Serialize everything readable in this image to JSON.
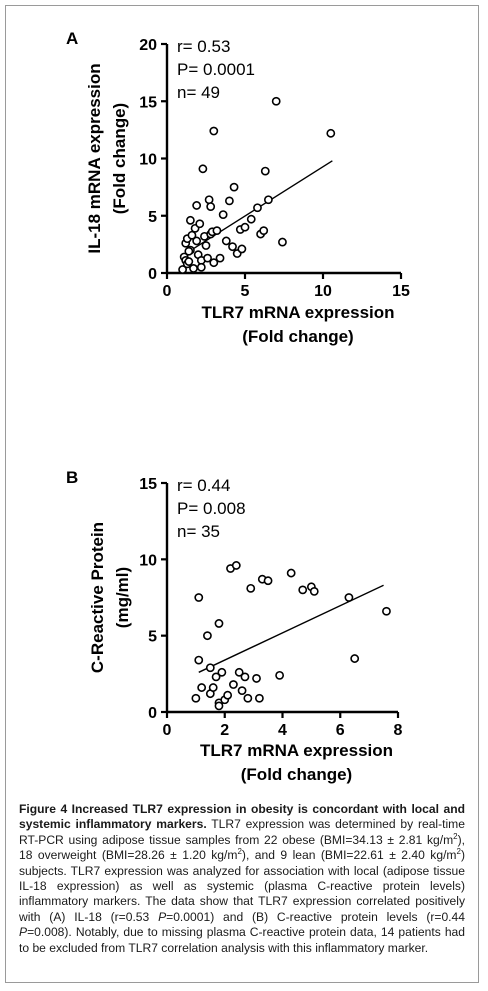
{
  "chart_data": [
    {
      "type": "scatter",
      "panel": "A",
      "xlabel": [
        "TLR7 mRNA expression",
        "(Fold change)"
      ],
      "ylabel": [
        "IL-18 mRNA expression",
        "(Fold change)"
      ],
      "xlim": [
        0,
        15
      ],
      "ylim": [
        0,
        20
      ],
      "xticks": [
        "0",
        "5",
        "10",
        "15"
      ],
      "yticks": [
        "0",
        "5",
        "10",
        "15",
        "20"
      ],
      "stats": [
        "r= 0.53",
        "P= 0.0001",
        "n= 49"
      ],
      "regression": {
        "x1": 1.2,
        "y1": 1.7,
        "x2": 10.6,
        "y2": 9.8
      },
      "points": [
        [
          1.0,
          0.3
        ],
        [
          1.1,
          1.4
        ],
        [
          1.2,
          1.1
        ],
        [
          1.3,
          0.8
        ],
        [
          1.4,
          1.0
        ],
        [
          1.2,
          2.6
        ],
        [
          1.3,
          3.0
        ],
        [
          1.5,
          4.6
        ],
        [
          1.5,
          2.0
        ],
        [
          1.7,
          0.4
        ],
        [
          1.8,
          3.9
        ],
        [
          1.9,
          5.9
        ],
        [
          1.9,
          2.8
        ],
        [
          2.0,
          1.6
        ],
        [
          2.1,
          4.3
        ],
        [
          2.2,
          1.1
        ],
        [
          2.2,
          0.5
        ],
        [
          2.3,
          9.1
        ],
        [
          2.4,
          3.2
        ],
        [
          2.6,
          1.3
        ],
        [
          2.7,
          6.4
        ],
        [
          2.8,
          3.4
        ],
        [
          2.8,
          5.8
        ],
        [
          2.9,
          3.6
        ],
        [
          3.0,
          0.9
        ],
        [
          3.0,
          12.4
        ],
        [
          3.2,
          3.7
        ],
        [
          3.4,
          1.3
        ],
        [
          3.6,
          5.1
        ],
        [
          3.8,
          2.8
        ],
        [
          4.0,
          6.3
        ],
        [
          4.2,
          2.3
        ],
        [
          4.3,
          7.5
        ],
        [
          4.5,
          1.7
        ],
        [
          4.7,
          3.8
        ],
        [
          4.8,
          2.1
        ],
        [
          5.0,
          4.0
        ],
        [
          5.4,
          4.7
        ],
        [
          5.8,
          5.7
        ],
        [
          6.0,
          3.4
        ],
        [
          6.2,
          3.7
        ],
        [
          6.3,
          8.9
        ],
        [
          6.5,
          6.4
        ],
        [
          7.0,
          15.0
        ],
        [
          7.4,
          2.7
        ],
        [
          10.5,
          12.2
        ],
        [
          1.6,
          3.3
        ],
        [
          2.5,
          2.4
        ],
        [
          1.4,
          1.9
        ]
      ]
    },
    {
      "type": "scatter",
      "panel": "B",
      "xlabel": [
        "TLR7 mRNA expression",
        "(Fold change)"
      ],
      "ylabel": [
        "C-Reactive Protein",
        "(mg/ml)"
      ],
      "xlim": [
        0,
        8
      ],
      "ylim": [
        0,
        15
      ],
      "xticks": [
        "0",
        "2",
        "4",
        "6",
        "8"
      ],
      "yticks": [
        "0",
        "5",
        "10",
        "15"
      ],
      "stats": [
        "r= 0.44",
        "P= 0.008",
        "n= 35"
      ],
      "regression": {
        "x1": 1.1,
        "y1": 2.6,
        "x2": 7.5,
        "y2": 8.3
      },
      "points": [
        [
          1.0,
          0.9
        ],
        [
          1.1,
          7.5
        ],
        [
          1.1,
          3.4
        ],
        [
          1.2,
          1.6
        ],
        [
          1.4,
          5.0
        ],
        [
          1.5,
          2.9
        ],
        [
          1.5,
          1.2
        ],
        [
          1.6,
          1.6
        ],
        [
          1.7,
          2.3
        ],
        [
          1.8,
          0.6
        ],
        [
          1.8,
          0.4
        ],
        [
          1.8,
          5.8
        ],
        [
          1.9,
          2.6
        ],
        [
          2.0,
          0.8
        ],
        [
          2.1,
          1.1
        ],
        [
          2.2,
          9.4
        ],
        [
          2.3,
          1.8
        ],
        [
          2.4,
          9.6
        ],
        [
          2.5,
          2.6
        ],
        [
          2.6,
          1.4
        ],
        [
          2.7,
          2.3
        ],
        [
          2.8,
          0.9
        ],
        [
          2.9,
          8.1
        ],
        [
          3.1,
          2.2
        ],
        [
          3.2,
          0.9
        ],
        [
          3.3,
          8.7
        ],
        [
          3.5,
          8.6
        ],
        [
          3.9,
          2.4
        ],
        [
          4.3,
          9.1
        ],
        [
          4.7,
          8.0
        ],
        [
          5.0,
          8.2
        ],
        [
          5.1,
          7.9
        ],
        [
          6.3,
          7.5
        ],
        [
          6.5,
          3.5
        ],
        [
          7.6,
          6.6
        ]
      ]
    }
  ],
  "caption": {
    "parts": [
      {
        "t": "Figure 4 Increased TLR7 expression in obesity is concordant with local and systemic inflammatory markers.",
        "b": true
      },
      {
        "t": " TLR7 expression was determined by real-time RT-PCR using adipose tissue samples from 22 obese (BMI=34.13 ± 2.81 kg/m"
      },
      {
        "t": "2",
        "sup": true
      },
      {
        "t": "), 18 overweight (BMI=28.26 ± 1.20 kg/m"
      },
      {
        "t": "2",
        "sup": true
      },
      {
        "t": "), and 9 lean (BMI=22.61 ± 2.40 kg/m"
      },
      {
        "t": "2",
        "sup": true
      },
      {
        "t": ") subjects. TLR7 expression was analyzed for association with local (adipose tissue IL-18 expression) as well as systemic (plasma C-reactive protein levels) inflammatory markers. The data show that TLR7 expression correlated positively with (A) IL-18 (r=0.53 "
      },
      {
        "t": "P",
        "i": true
      },
      {
        "t": "=0.0001) and (B) C-reactive protein levels (r=0.44 "
      },
      {
        "t": "P",
        "i": true
      },
      {
        "t": "=0.008). Notably, due to missing plasma C-reactive protein data, 14 patients had to be excluded from TLR7 correlation analysis with this inflammatory marker."
      }
    ]
  }
}
